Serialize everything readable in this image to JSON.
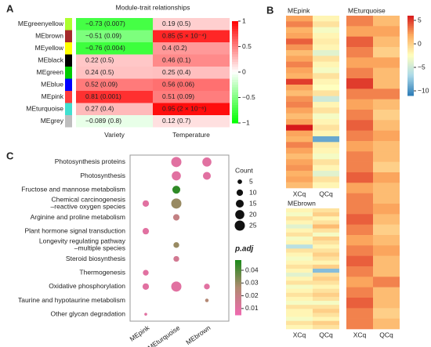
{
  "chart_data": [
    {
      "type": "heatmap",
      "panel_label": "A",
      "title": "Module-trait relationships",
      "rows": [
        "MEgreenyellow",
        "MEbrown",
        "MEyellow",
        "MEblack",
        "MEgreen",
        "MEblue",
        "MEpink",
        "MEturquoise",
        "MEgrey"
      ],
      "row_colors": [
        "#adff2f",
        "#a52a2a",
        "#ffff00",
        "#000000",
        "#00cc00",
        "#0000ff",
        "#ff3c3c",
        "#40e0d0",
        "#bebebe"
      ],
      "columns": [
        "Variety",
        "Temperature"
      ],
      "cells": [
        [
          {
            "value": -0.73,
            "label": "−0.73 (0.007)"
          },
          {
            "value": 0.19,
            "label": "0.19 (0.5)"
          }
        ],
        [
          {
            "value": -0.51,
            "label": "−0.51 (0.09)"
          },
          {
            "value": 0.85,
            "label": "0.85 (5 × 10⁻⁴)"
          }
        ],
        [
          {
            "value": -0.76,
            "label": "−0.76 (0.004)"
          },
          {
            "value": 0.4,
            "label": "0.4 (0.2)"
          }
        ],
        [
          {
            "value": 0.22,
            "label": "0.22 (0.5)"
          },
          {
            "value": 0.46,
            "label": "0.46 (0.1)"
          }
        ],
        [
          {
            "value": 0.24,
            "label": "0.24 (0.5)"
          },
          {
            "value": 0.25,
            "label": "0.25 (0.4)"
          }
        ],
        [
          {
            "value": 0.52,
            "label": "0.52 (0.09)"
          },
          {
            "value": 0.56,
            "label": "0.56 (0.06)"
          }
        ],
        [
          {
            "value": 0.81,
            "label": "0.81 (0.001)"
          },
          {
            "value": 0.51,
            "label": "0.51 (0.09)"
          }
        ],
        [
          {
            "value": 0.27,
            "label": "0.27 (0.4)"
          },
          {
            "value": 0.95,
            "label": "0.95 (2 × 10⁻⁶)"
          }
        ],
        [
          {
            "value": -0.089,
            "label": "−0.089 (0.8)"
          },
          {
            "value": 0.12,
            "label": "0.12 (0.7)"
          }
        ]
      ],
      "lim": [
        -1,
        1
      ],
      "colors": [
        "#00ff00",
        "#ffffff",
        "#ff0000"
      ],
      "ticks": [
        1,
        0.5,
        0,
        {
          "value": -0.5,
          "label": "−0.5"
        },
        {
          "value": -1,
          "label": "−1"
        }
      ]
    },
    {
      "type": "strips",
      "panel_label": "B",
      "lim": [
        -11,
        6
      ],
      "colors": [
        "#2c7bb6",
        "#abd9e9",
        "#ffffbf",
        "#fdae61",
        "#d7191c"
      ],
      "ticks": [
        5,
        0,
        {
          "value": -5,
          "label": "−5"
        },
        {
          "value": -10,
          "label": "−10"
        }
      ],
      "panels": [
        {
          "title": "MEpink",
          "columns": [
            "XCq",
            "QCq"
          ],
          "values": [
            [
              2,
              3,
              1.5,
              2,
              4,
              2.5,
              1,
              2,
              3,
              2,
              1.5,
              5,
              2,
              1,
              2.5,
              3,
              2,
              1,
              2,
              6,
              2,
              1.5,
              3,
              2,
              1,
              2,
              2.5,
              1.5,
              2,
              1
            ],
            [
              -2,
              -1,
              -3,
              -2,
              -1.5,
              -2,
              -4,
              -1,
              -2,
              -3,
              -1,
              -2,
              -2.5,
              -1,
              -5,
              -2,
              -1,
              -3,
              -2,
              -1,
              -2,
              -9,
              -1.5,
              -2,
              -3,
              -1,
              -2,
              -4,
              -1,
              -2
            ]
          ]
        },
        {
          "title": "MEbrown",
          "columns": [
            "XCq",
            "QCq"
          ],
          "values": [
            [
              -2,
              -3,
              -1,
              -2,
              -4,
              -2,
              -1,
              -3,
              -2,
              -6,
              -1,
              -2,
              -3,
              -2,
              -1,
              -2,
              -4,
              -2,
              -1,
              -3,
              -2,
              -1,
              -2,
              -3,
              -1,
              -2,
              -2,
              -3,
              -1,
              -2
            ],
            [
              -1,
              0,
              -2,
              -1,
              1,
              -1,
              -3,
              0,
              -1,
              -2,
              -1,
              0,
              -1,
              -2,
              0,
              -8,
              -1,
              0,
              -1,
              -2,
              -1,
              0,
              -1,
              -3,
              -1,
              0,
              -1,
              -2,
              0,
              -1
            ]
          ]
        },
        {
          "title": "MEturquoise",
          "columns": [
            "XCq",
            "QCq"
          ],
          "values": [
            [
              3,
              2,
              4,
              3,
              2,
              3,
              5,
              3,
              2,
              3,
              4,
              3,
              2,
              3,
              3,
              4,
              2,
              3,
              3,
              4,
              3,
              2,
              3,
              4,
              3,
              2,
              3,
              4,
              3,
              3
            ],
            [
              1,
              2,
              1,
              0,
              2,
              1,
              1,
              3,
              1,
              0,
              1,
              2,
              1,
              1,
              0,
              2,
              1,
              1,
              2,
              1,
              0,
              1,
              2,
              1,
              1,
              3,
              1,
              1,
              0,
              1
            ]
          ]
        }
      ]
    },
    {
      "type": "dot",
      "panel_label": "C",
      "categories": [
        "Photosynthesis proteins",
        "Photosynthesis",
        "Fructose and mannose metabolism",
        [
          "Chemical carcinogenesis",
          "–reactive oxygen species"
        ],
        "Arginine and proline metabolism",
        "Plant hormone signal transduction",
        [
          "Longevity regulating pathway",
          "–multiple species"
        ],
        "Steroid biosynthesis",
        "Thermogenesis",
        "Oxidative phosphorylation",
        "Taurine and hypotaurine metabolism",
        "Other glycan degradation"
      ],
      "series": [
        {
          "name": "MEpink",
          "counts": [
            null,
            null,
            null,
            10,
            null,
            10,
            null,
            null,
            8,
            10,
            null,
            2
          ],
          "p_adj": [
            null,
            null,
            null,
            0.01,
            null,
            0.01,
            null,
            null,
            0.01,
            0.01,
            null,
            0.01
          ]
        },
        {
          "name": "MEturquoise",
          "counts": [
            25,
            20,
            15,
            25,
            10,
            null,
            8,
            8,
            null,
            25,
            null,
            null
          ],
          "p_adj": [
            0.01,
            0.01,
            0.045,
            0.03,
            0.02,
            null,
            0.03,
            0.015,
            null,
            0.01,
            null,
            null
          ]
        },
        {
          "name": "MEbrown",
          "counts": [
            20,
            15,
            null,
            null,
            null,
            null,
            null,
            null,
            null,
            8,
            3,
            null
          ],
          "p_adj": [
            0.01,
            0.01,
            null,
            null,
            null,
            null,
            null,
            null,
            null,
            0.01,
            0.025,
            null
          ]
        }
      ],
      "size_legend": {
        "title": "Count",
        "values": [
          5,
          10,
          15,
          20,
          25
        ]
      },
      "color_legend": {
        "title": "p.adj",
        "lim": [
          0.005,
          0.048
        ],
        "colors": [
          "#f06ab0",
          "#b08a70",
          "#1a8a1a"
        ],
        "ticks": [
          0.04,
          0.03,
          0.02,
          0.01
        ]
      }
    }
  ]
}
